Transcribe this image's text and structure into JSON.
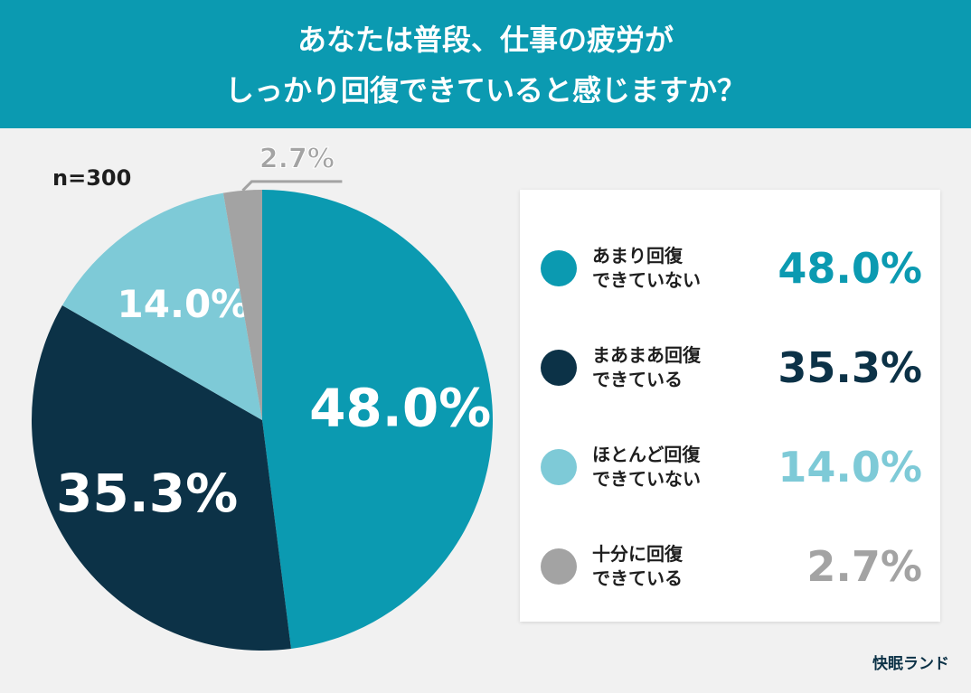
{
  "chart_data": {
    "type": "pie",
    "title": [
      "あなたは普段、仕事の疲労が",
      "しっかり回復できていると感じますか？"
    ],
    "note": "n=300",
    "categories": [
      "あまり回復\nできていない",
      "まあまあ回復\nできている",
      "ほとんど回復\nできていない",
      "十分に回復\nできている"
    ],
    "values": [
      48.0,
      35.3,
      14.0,
      2.7
    ],
    "value_labels": [
      "48.0%",
      "35.3%",
      "14.0%",
      "2.7%"
    ],
    "colors": [
      "#0b9ab1",
      "#0c3247",
      "#7ecad7",
      "#a3a3a3"
    ],
    "brand": "快眠ランド"
  }
}
